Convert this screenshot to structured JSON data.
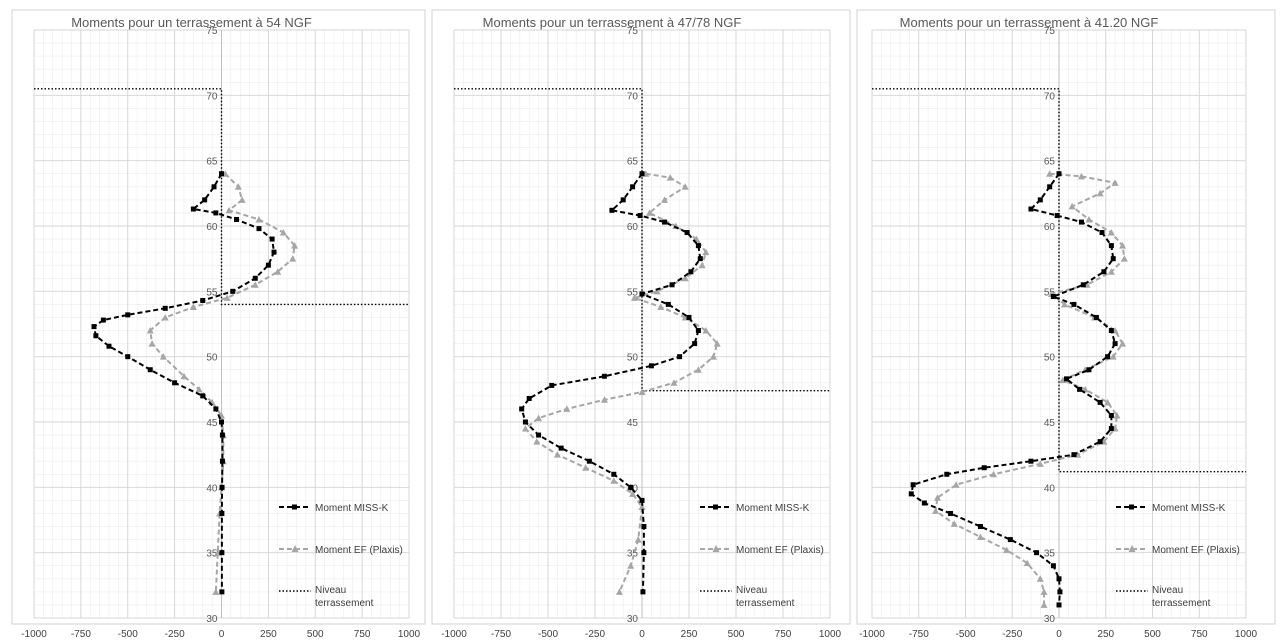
{
  "chart_data": [
    {
      "type": "line",
      "title": "Moments pour un terrassement à 54 NGF",
      "xlabel": "",
      "ylabel": "",
      "xlim": [
        -1000,
        1000
      ],
      "ylim": [
        30,
        75
      ],
      "x_ticks": [
        "-1000",
        "-750",
        "-500",
        "-250",
        "0",
        "250",
        "500",
        "750",
        "1000"
      ],
      "y_ticks": [
        "30",
        "35",
        "40",
        "45",
        "50",
        "55",
        "60",
        "65",
        "70",
        "75"
      ],
      "grid": true,
      "legend_position": "bottom-right",
      "series": [
        {
          "name": "Moment MISS-K",
          "color": "#000000",
          "style": "dashed-square",
          "points": [
            [
              0,
              64
            ],
            [
              -40,
              63
            ],
            [
              -90,
              62
            ],
            [
              -150,
              61.3
            ],
            [
              -30,
              61
            ],
            [
              80,
              60.5
            ],
            [
              200,
              59.8
            ],
            [
              270,
              59
            ],
            [
              280,
              58
            ],
            [
              250,
              57
            ],
            [
              180,
              56
            ],
            [
              60,
              55
            ],
            [
              -100,
              54.3
            ],
            [
              -300,
              53.7
            ],
            [
              -500,
              53.2
            ],
            [
              -630,
              52.8
            ],
            [
              -680,
              52.3
            ],
            [
              -670,
              51.6
            ],
            [
              -600,
              50.8
            ],
            [
              -500,
              50
            ],
            [
              -380,
              49
            ],
            [
              -250,
              48
            ],
            [
              -100,
              47
            ],
            [
              -30,
              46
            ],
            [
              0,
              45
            ],
            [
              5,
              44
            ],
            [
              5,
              42
            ],
            [
              3,
              40
            ],
            [
              2,
              38
            ],
            [
              2,
              35
            ],
            [
              2,
              32
            ]
          ]
        },
        {
          "name": "Moment EF (Plaxis)",
          "color": "#a6a6a6",
          "style": "dashed-triangle",
          "points": [
            [
              20,
              64
            ],
            [
              90,
              63
            ],
            [
              110,
              62
            ],
            [
              40,
              61.2
            ],
            [
              200,
              60.5
            ],
            [
              330,
              59.5
            ],
            [
              390,
              58.5
            ],
            [
              380,
              57.5
            ],
            [
              300,
              56.5
            ],
            [
              180,
              55.5
            ],
            [
              30,
              54.5
            ],
            [
              -150,
              53.8
            ],
            [
              -300,
              53
            ],
            [
              -380,
              52
            ],
            [
              -370,
              51
            ],
            [
              -310,
              50
            ],
            [
              -200,
              48.5
            ],
            [
              -120,
              47.5
            ],
            [
              -50,
              46.5
            ],
            [
              0,
              45.5
            ],
            [
              10,
              44
            ],
            [
              10,
              42
            ],
            [
              0,
              40
            ],
            [
              -10,
              38
            ],
            [
              -20,
              35
            ],
            [
              -30,
              32
            ]
          ]
        },
        {
          "name": "Niveau terrassement",
          "color": "#000000",
          "style": "dotted",
          "points": [
            [
              -1000,
              70.5
            ],
            [
              0,
              70.5
            ],
            [
              0,
              54
            ],
            [
              1000,
              54
            ]
          ]
        }
      ]
    },
    {
      "type": "line",
      "title": "Moments pour un terrassement à 47/78 NGF",
      "xlabel": "",
      "ylabel": "",
      "xlim": [
        -1000,
        1000
      ],
      "ylim": [
        30,
        75
      ],
      "x_ticks": [
        "-1000",
        "-750",
        "-500",
        "-250",
        "0",
        "250",
        "500",
        "750",
        "1000"
      ],
      "y_ticks": [
        "30",
        "35",
        "40",
        "45",
        "50",
        "55",
        "60",
        "65",
        "70",
        "75"
      ],
      "grid": true,
      "legend_position": "bottom-right",
      "series": [
        {
          "name": "Moment MISS-K",
          "color": "#000000",
          "style": "dashed-square",
          "points": [
            [
              0,
              64
            ],
            [
              -50,
              63
            ],
            [
              -100,
              62
            ],
            [
              -160,
              61.2
            ],
            [
              -10,
              60.8
            ],
            [
              120,
              60.3
            ],
            [
              240,
              59.5
            ],
            [
              300,
              58.5
            ],
            [
              310,
              57.5
            ],
            [
              260,
              56.5
            ],
            [
              160,
              55.5
            ],
            [
              0,
              54.8
            ],
            [
              140,
              54
            ],
            [
              250,
              53
            ],
            [
              300,
              52
            ],
            [
              280,
              51
            ],
            [
              200,
              50
            ],
            [
              50,
              49.3
            ],
            [
              -200,
              48.5
            ],
            [
              -480,
              47.8
            ],
            [
              -600,
              46.8
            ],
            [
              -640,
              46
            ],
            [
              -620,
              45
            ],
            [
              -550,
              44
            ],
            [
              -430,
              43
            ],
            [
              -280,
              42
            ],
            [
              -150,
              41
            ],
            [
              -60,
              40
            ],
            [
              0,
              39
            ],
            [
              10,
              37
            ],
            [
              10,
              35
            ],
            [
              5,
              32
            ]
          ]
        },
        {
          "name": "Moment EF (Plaxis)",
          "color": "#a6a6a6",
          "style": "dashed-triangle",
          "points": [
            [
              20,
              64
            ],
            [
              150,
              63.7
            ],
            [
              230,
              63
            ],
            [
              120,
              62
            ],
            [
              40,
              61
            ],
            [
              180,
              60
            ],
            [
              290,
              59
            ],
            [
              340,
              58
            ],
            [
              320,
              57
            ],
            [
              230,
              56
            ],
            [
              80,
              55
            ],
            [
              -40,
              54.5
            ],
            [
              100,
              53.8
            ],
            [
              230,
              53
            ],
            [
              340,
              52
            ],
            [
              400,
              51
            ],
            [
              380,
              50
            ],
            [
              300,
              49
            ],
            [
              170,
              48
            ],
            [
              0,
              47.3
            ],
            [
              -200,
              46.7
            ],
            [
              -400,
              46
            ],
            [
              -550,
              45.3
            ],
            [
              -620,
              44.5
            ],
            [
              -560,
              43.5
            ],
            [
              -450,
              42.5
            ],
            [
              -300,
              41.5
            ],
            [
              -150,
              40.5
            ],
            [
              -50,
              39.5
            ],
            [
              0,
              38.5
            ],
            [
              -20,
              36
            ],
            [
              -60,
              34
            ],
            [
              -120,
              32
            ]
          ]
        },
        {
          "name": "Niveau terrassement",
          "color": "#000000",
          "style": "dotted",
          "points": [
            [
              -1000,
              70.5
            ],
            [
              0,
              70.5
            ],
            [
              0,
              47.4
            ],
            [
              1000,
              47.4
            ]
          ]
        }
      ]
    },
    {
      "type": "line",
      "title": "Moments pour un terrassement à 41.20 NGF",
      "xlabel": "",
      "ylabel": "",
      "xlim": [
        -1000,
        1000
      ],
      "ylim": [
        30,
        75
      ],
      "x_ticks": [
        "-1000",
        "-750",
        "-500",
        "-250",
        "0",
        "250",
        "500",
        "750",
        "1000"
      ],
      "y_ticks": [
        "30",
        "35",
        "40",
        "45",
        "50",
        "55",
        "60",
        "65",
        "70",
        "75"
      ],
      "grid": true,
      "legend_position": "bottom-right",
      "series": [
        {
          "name": "Moment MISS-K",
          "color": "#000000",
          "style": "dashed-square",
          "points": [
            [
              0,
              64
            ],
            [
              -50,
              63
            ],
            [
              -100,
              62
            ],
            [
              -150,
              61.3
            ],
            [
              -10,
              60.8
            ],
            [
              120,
              60.3
            ],
            [
              230,
              59.5
            ],
            [
              280,
              58.5
            ],
            [
              290,
              57.5
            ],
            [
              240,
              56.5
            ],
            [
              130,
              55.5
            ],
            [
              -30,
              54.6
            ],
            [
              80,
              54
            ],
            [
              200,
              53
            ],
            [
              280,
              52
            ],
            [
              300,
              51
            ],
            [
              260,
              50
            ],
            [
              160,
              49
            ],
            [
              40,
              48.3
            ],
            [
              110,
              47.5
            ],
            [
              220,
              46.5
            ],
            [
              280,
              45.5
            ],
            [
              280,
              44.5
            ],
            [
              220,
              43.5
            ],
            [
              80,
              42.5
            ],
            [
              -150,
              42
            ],
            [
              -400,
              41.5
            ],
            [
              -600,
              41
            ],
            [
              -780,
              40.2
            ],
            [
              -790,
              39.5
            ],
            [
              -720,
              38.8
            ],
            [
              -580,
              38
            ],
            [
              -420,
              37
            ],
            [
              -260,
              36
            ],
            [
              -120,
              35
            ],
            [
              -30,
              34
            ],
            [
              0,
              33
            ],
            [
              5,
              32
            ],
            [
              0,
              31
            ]
          ]
        },
        {
          "name": "Moment EF (Plaxis)",
          "color": "#a6a6a6",
          "style": "dashed-triangle",
          "points": [
            [
              -50,
              64
            ],
            [
              120,
              63.8
            ],
            [
              300,
              63.3
            ],
            [
              220,
              62.5
            ],
            [
              70,
              61.5
            ],
            [
              160,
              60.5
            ],
            [
              280,
              59.5
            ],
            [
              340,
              58.5
            ],
            [
              350,
              57.5
            ],
            [
              280,
              56.5
            ],
            [
              150,
              55.5
            ],
            [
              -40,
              54.8
            ],
            [
              30,
              54
            ],
            [
              190,
              53
            ],
            [
              300,
              52
            ],
            [
              340,
              51
            ],
            [
              290,
              50
            ],
            [
              140,
              49
            ],
            [
              20,
              48.2
            ],
            [
              140,
              47.5
            ],
            [
              260,
              46.5
            ],
            [
              310,
              45.5
            ],
            [
              300,
              44.5
            ],
            [
              240,
              43.5
            ],
            [
              100,
              42.5
            ],
            [
              -100,
              41.8
            ],
            [
              -350,
              41
            ],
            [
              -550,
              40.2
            ],
            [
              -650,
              39.2
            ],
            [
              -660,
              38.2
            ],
            [
              -560,
              37.2
            ],
            [
              -420,
              36.2
            ],
            [
              -280,
              35.2
            ],
            [
              -170,
              34.2
            ],
            [
              -100,
              33
            ],
            [
              -80,
              32
            ],
            [
              -80,
              31
            ]
          ]
        },
        {
          "name": "Niveau terrassement",
          "color": "#000000",
          "style": "dotted",
          "points": [
            [
              -1000,
              70.5
            ],
            [
              0,
              70.5
            ],
            [
              0,
              41.2
            ],
            [
              1000,
              41.2
            ]
          ]
        }
      ]
    }
  ],
  "legend_labels": {
    "moment_miss_k": "Moment MISS-K",
    "moment_ef": "Moment EF (Plaxis)",
    "niveau_line1": "Niveau",
    "niveau_line2": "terrassement"
  }
}
